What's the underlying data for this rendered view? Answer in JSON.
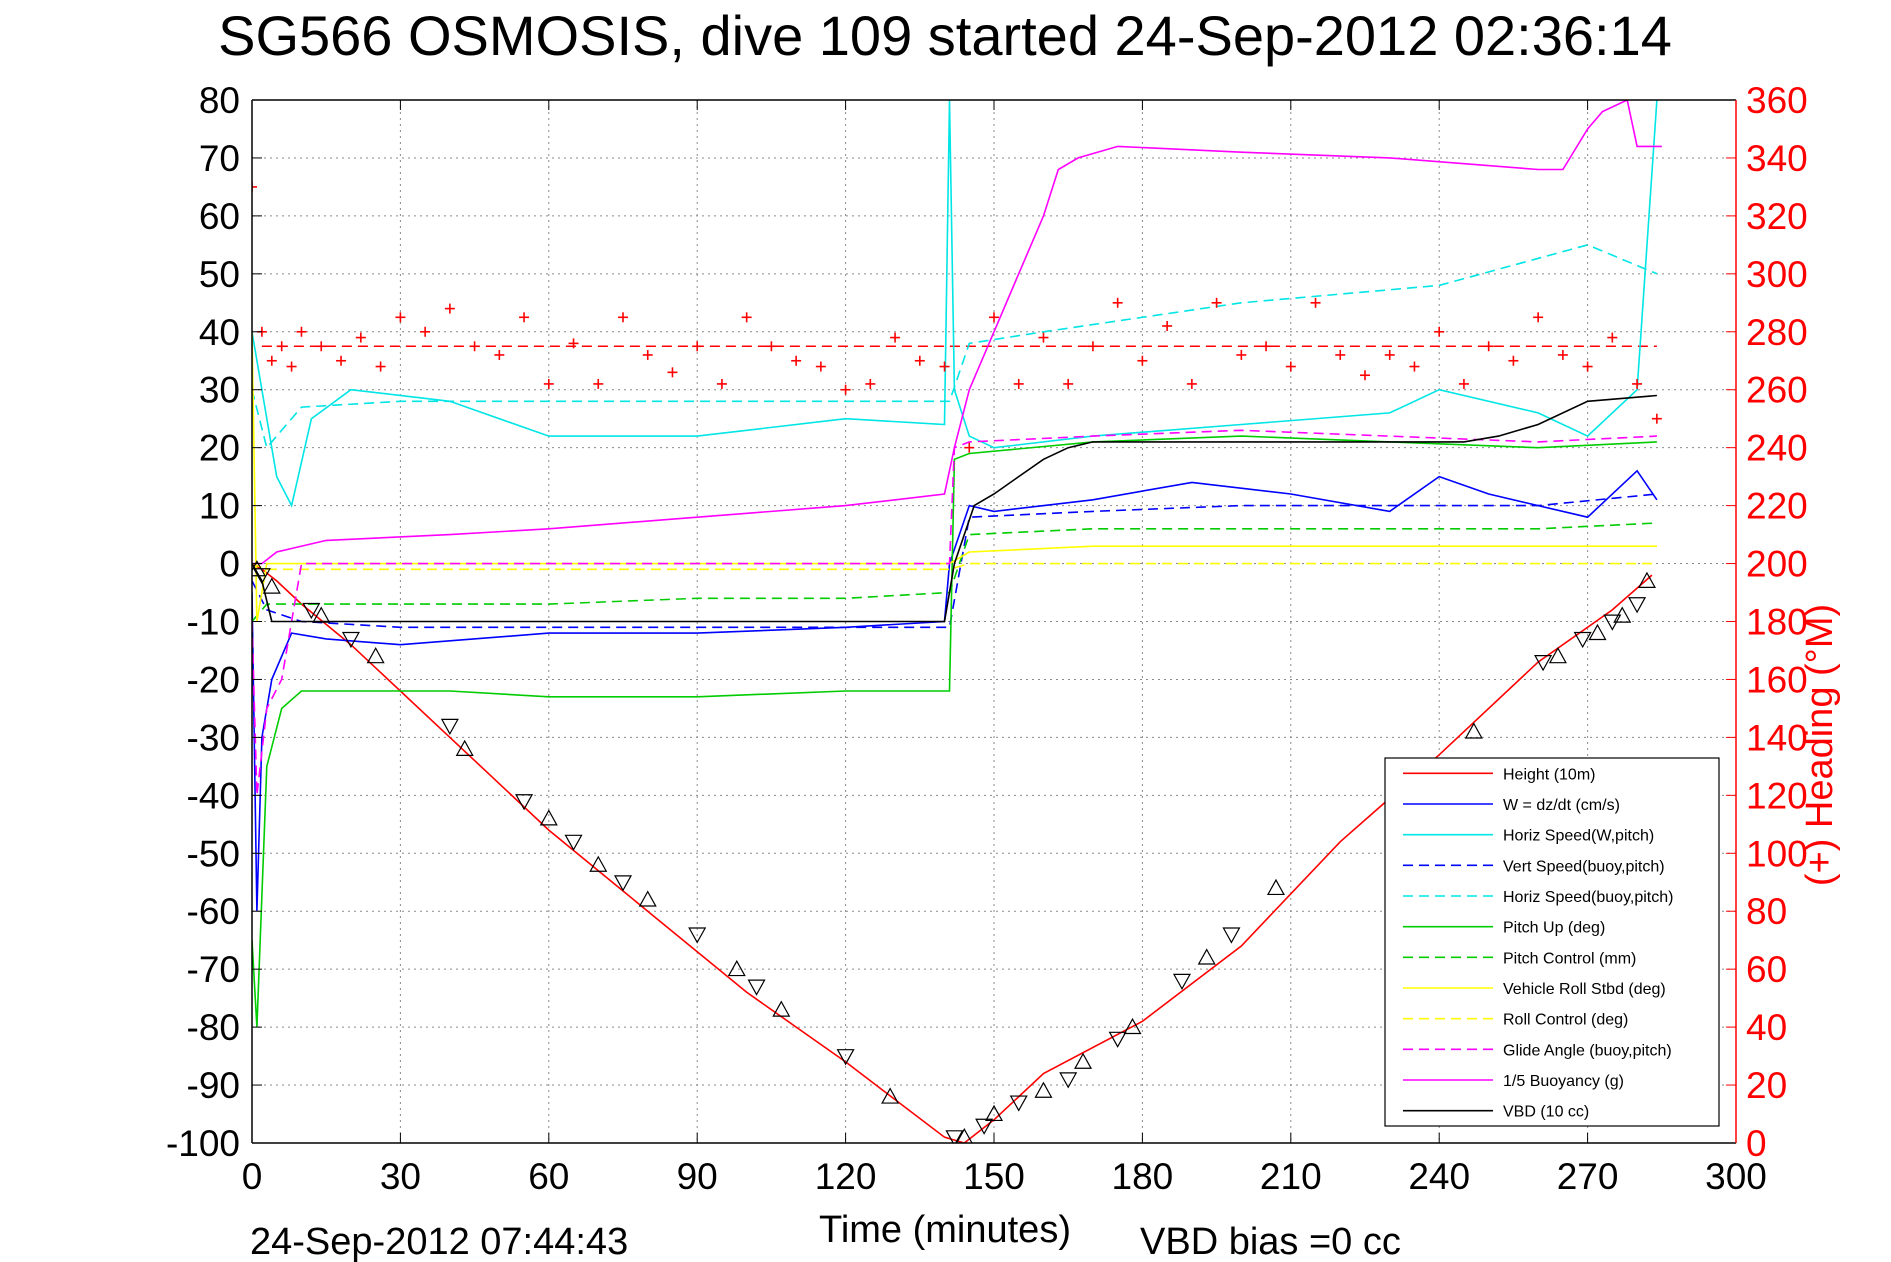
{
  "chart_data": {
    "type": "line",
    "title": "SG566 OSMOSIS, dive 109 started 24-Sep-2012 02:36:14",
    "xlabel": "Time (minutes)",
    "ylabel_right": "(+) Heading (°M)",
    "xlim": [
      0,
      300
    ],
    "ylim": [
      -100,
      80
    ],
    "ylim_right": [
      0,
      360
    ],
    "x_ticks": [
      "0",
      "30",
      "60",
      "90",
      "120",
      "150",
      "180",
      "210",
      "240",
      "270",
      "300"
    ],
    "y_ticks": [
      "80",
      "70",
      "60",
      "50",
      "40",
      "30",
      "20",
      "10",
      "0",
      "-10",
      "-20",
      "-30",
      "-40",
      "-50",
      "-60",
      "-70",
      "-80",
      "-90",
      "-100"
    ],
    "y_ticks_right": [
      "360",
      "340",
      "320",
      "300",
      "280",
      "260",
      "240",
      "220",
      "200",
      "180",
      "160",
      "140",
      "120",
      "100",
      "80",
      "60",
      "40",
      "20",
      "0"
    ],
    "grid": true,
    "legend_position": "bottom-right",
    "footer_left": "24-Sep-2012 07:44:43",
    "footer_right": "VBD bias =0 cc",
    "series": [
      {
        "name": "Height (10m)",
        "color": "#ff0000",
        "style": "solid",
        "x": [
          0,
          2,
          5,
          10,
          20,
          40,
          60,
          80,
          100,
          120,
          140,
          144,
          150,
          160,
          180,
          200,
          220,
          240,
          260,
          275,
          283
        ],
        "y": [
          0,
          -1,
          -3,
          -7,
          -14,
          -30,
          -46,
          -60,
          -74,
          -86,
          -99,
          -100,
          -96,
          -88,
          -79,
          -66,
          -48,
          -33,
          -17,
          -8,
          -2
        ]
      },
      {
        "name": "W = dz/dt (cm/s)",
        "color": "#0000ff",
        "style": "solid",
        "x": [
          0,
          1,
          2,
          4,
          8,
          15,
          30,
          60,
          90,
          120,
          140,
          141,
          145,
          150,
          170,
          190,
          210,
          230,
          240,
          250,
          260,
          270,
          280,
          284
        ],
        "y": [
          -5,
          -60,
          -30,
          -20,
          -12,
          -13,
          -14,
          -12,
          -12,
          -11,
          -10,
          0,
          10,
          9,
          11,
          14,
          12,
          9,
          15,
          12,
          10,
          8,
          16,
          11
        ]
      },
      {
        "name": "Horiz Speed(W,pitch)",
        "color": "#00e5e5",
        "style": "solid",
        "x": [
          0,
          2,
          5,
          8,
          12,
          20,
          40,
          60,
          90,
          120,
          140,
          141,
          142,
          145,
          150,
          170,
          200,
          230,
          240,
          260,
          270,
          280,
          284
        ],
        "y": [
          40,
          30,
          15,
          10,
          25,
          30,
          28,
          22,
          22,
          25,
          24,
          80,
          30,
          22,
          20,
          22,
          24,
          26,
          30,
          26,
          22,
          30,
          80
        ]
      },
      {
        "name": "Vert Speed(buoy,pitch)",
        "color": "#0000ff",
        "style": "dashed",
        "x": [
          0,
          3,
          10,
          30,
          60,
          90,
          120,
          141,
          145,
          170,
          200,
          230,
          260,
          284
        ],
        "y": [
          -3,
          -8,
          -10,
          -11,
          -11,
          -11,
          -11,
          -11,
          8,
          9,
          10,
          10,
          10,
          12
        ]
      },
      {
        "name": "Horiz Speed(buoy,pitch)",
        "color": "#00e5e5",
        "style": "dashed",
        "x": [
          0,
          3,
          10,
          30,
          60,
          90,
          120,
          141,
          145,
          160,
          200,
          240,
          270,
          284
        ],
        "y": [
          30,
          20,
          27,
          28,
          28,
          28,
          28,
          28,
          38,
          40,
          45,
          48,
          55,
          50
        ]
      },
      {
        "name": "Pitch Up (deg)",
        "color": "#00cc00",
        "style": "solid",
        "x": [
          0,
          1,
          3,
          6,
          10,
          20,
          40,
          60,
          90,
          120,
          141,
          142,
          145,
          170,
          200,
          230,
          260,
          284
        ],
        "y": [
          -65,
          -80,
          -35,
          -25,
          -22,
          -22,
          -22,
          -23,
          -23,
          -22,
          -22,
          18,
          19,
          21,
          22,
          21,
          20,
          21
        ]
      },
      {
        "name": "Pitch Control (mm)",
        "color": "#00cc00",
        "style": "dashed",
        "x": [
          0,
          3,
          10,
          30,
          60,
          90,
          120,
          141,
          145,
          170,
          200,
          230,
          260,
          284
        ],
        "y": [
          -10,
          -7,
          -7,
          -7,
          -7,
          -6,
          -6,
          -5,
          5,
          6,
          6,
          6,
          6,
          7
        ]
      },
      {
        "name": "Vehicle Roll Stbd (deg)",
        "color": "#ffff00",
        "style": "solid",
        "x": [
          0,
          1,
          3,
          10,
          30,
          60,
          90,
          120,
          141,
          145,
          170,
          200,
          230,
          260,
          284
        ],
        "y": [
          40,
          -10,
          0,
          0,
          0,
          0,
          0,
          0,
          0,
          2,
          3,
          3,
          3,
          3,
          3
        ]
      },
      {
        "name": "Roll Control (deg)",
        "color": "#ffff00",
        "style": "dashed",
        "x": [
          0,
          3,
          10,
          30,
          60,
          90,
          120,
          141,
          145,
          170,
          200,
          230,
          260,
          284
        ],
        "y": [
          0,
          -1,
          -1,
          -1,
          -1,
          -1,
          -1,
          -1,
          0,
          0,
          0,
          0,
          0,
          0
        ]
      },
      {
        "name": "Glide Angle (buoy,pitch)",
        "color": "#ff00ff",
        "style": "dashed",
        "x": [
          0,
          1,
          3,
          6,
          10,
          30,
          60,
          90,
          120,
          141,
          142,
          145,
          170,
          200,
          230,
          260,
          284
        ],
        "y": [
          -10,
          -40,
          -25,
          -20,
          0,
          0,
          0,
          0,
          0,
          0,
          20,
          21,
          22,
          23,
          22,
          21,
          22
        ]
      },
      {
        "name": "1/5 Buoyancy (g)",
        "color": "#ff00ff",
        "style": "solid",
        "x": [
          0,
          2,
          5,
          15,
          40,
          60,
          90,
          120,
          140,
          142,
          145,
          150,
          155,
          160,
          163,
          167,
          175,
          200,
          230,
          260,
          265,
          270,
          273,
          278,
          280,
          285
        ],
        "y": [
          0,
          0,
          2,
          4,
          5,
          6,
          8,
          10,
          12,
          20,
          30,
          40,
          50,
          60,
          68,
          70,
          72,
          71,
          70,
          68,
          68,
          75,
          78,
          80,
          72,
          72
        ]
      },
      {
        "name": "VBD (10 cc)",
        "color": "#000000",
        "style": "solid",
        "x": [
          0,
          2,
          4,
          140,
          142,
          146,
          150,
          155,
          160,
          165,
          170,
          245,
          252,
          260,
          270,
          284
        ],
        "y": [
          0,
          -3,
          -10,
          -10,
          0,
          10,
          12,
          15,
          18,
          20,
          21,
          21,
          22,
          24,
          28,
          29
        ]
      }
    ],
    "heading_series": {
      "marker": "+",
      "color": "#ff0000",
      "target_heading": 275,
      "x": [
        0,
        2,
        4,
        6,
        8,
        10,
        14,
        18,
        22,
        26,
        30,
        35,
        40,
        45,
        50,
        55,
        60,
        65,
        70,
        75,
        80,
        85,
        90,
        95,
        100,
        105,
        110,
        115,
        120,
        125,
        130,
        135,
        140,
        145,
        150,
        155,
        160,
        165,
        170,
        175,
        180,
        185,
        190,
        195,
        200,
        205,
        210,
        215,
        220,
        225,
        230,
        235,
        240,
        245,
        250,
        255,
        260,
        265,
        270,
        275,
        280,
        284
      ],
      "y": [
        330,
        280,
        270,
        275,
        268,
        280,
        275,
        270,
        278,
        268,
        285,
        280,
        288,
        275,
        272,
        285,
        262,
        276,
        262,
        285,
        272,
        266,
        275,
        262,
        285,
        275,
        270,
        268,
        260,
        262,
        278,
        270,
        268,
        240,
        285,
        262,
        278,
        262,
        275,
        290,
        270,
        282,
        262,
        290,
        272,
        275,
        268,
        290,
        272,
        265,
        272,
        268,
        280,
        262,
        275,
        270,
        285,
        272,
        268,
        278,
        262,
        250
      ]
    },
    "triangle_markers": {
      "marker": "triangle",
      "color": "#000000",
      "x": [
        1,
        2,
        4,
        12,
        14,
        20,
        25,
        40,
        43,
        55,
        60,
        65,
        70,
        75,
        80,
        90,
        98,
        102,
        107,
        120,
        129,
        142,
        144,
        148,
        150,
        155,
        160,
        165,
        168,
        175,
        178,
        188,
        193,
        198,
        207,
        236,
        247,
        261,
        264,
        269,
        272,
        275,
        277,
        280,
        282
      ],
      "y": [
        -1,
        -2,
        -4,
        -8,
        -9,
        -13,
        -16,
        -28,
        -32,
        -41,
        -44,
        -48,
        -52,
        -55,
        -58,
        -64,
        -70,
        -73,
        -77,
        -85,
        -92,
        -99,
        -99,
        -97,
        -95,
        -93,
        -91,
        -89,
        -86,
        -82,
        -80,
        -72,
        -68,
        -64,
        -56,
        -35,
        -29,
        -17,
        -16,
        -13,
        -12,
        -10,
        -9,
        -7,
        -3
      ]
    }
  }
}
